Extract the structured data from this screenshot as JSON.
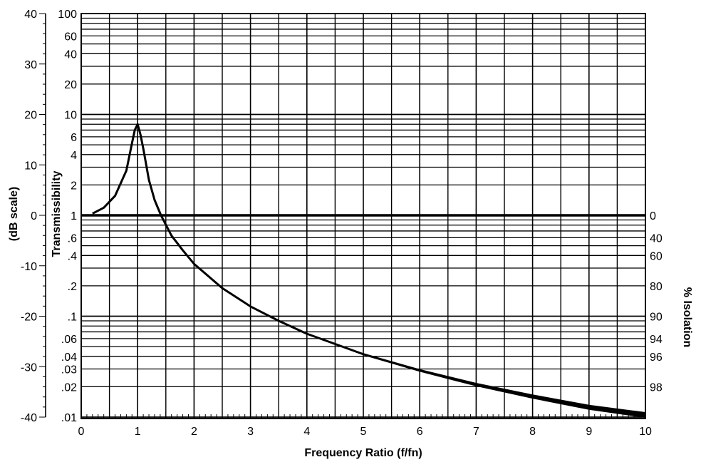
{
  "chart_data": {
    "type": "line",
    "title": "",
    "xlabel": "Frequency Ratio (f/fn)",
    "ylabel_primary": "Transmissibility",
    "ylabel_db": "(dB scale)",
    "ylabel_isolation": "% Isolation",
    "xlim": [
      0,
      10
    ],
    "ylim_transmissibility": [
      0.01,
      100
    ],
    "ylim_db": [
      -40,
      40
    ],
    "y_scale": "log",
    "grid": true,
    "x_ticks": [
      "0",
      "1",
      "2",
      "3",
      "4",
      "5",
      "6",
      "7",
      "8",
      "9",
      "10"
    ],
    "db_ticks": [
      "40",
      "30",
      "20",
      "10",
      "0",
      "-10",
      "-20",
      "-30",
      "-40"
    ],
    "transmissibility_ticks": [
      "100",
      "60",
      "40",
      "20",
      "10",
      "6",
      "4",
      "2",
      "1",
      ".6",
      ".4",
      ".2",
      ".1",
      ".06",
      ".04",
      ".03",
      ".02",
      ".01"
    ],
    "isolation_ticks": [
      "0",
      "40",
      "60",
      "80",
      "90",
      "94",
      "96",
      "98"
    ],
    "series": [
      {
        "x": [
          0.2,
          0.4,
          0.6,
          0.8,
          0.9,
          0.95,
          1.0,
          1.05,
          1.1,
          1.2,
          1.3,
          1.414,
          1.6,
          1.8,
          2.0,
          2.5,
          3.0,
          3.5,
          4.0,
          5.0,
          6.0,
          7.0,
          8.0,
          9.0,
          10.0
        ],
        "y": [
          1.04,
          1.19,
          1.56,
          2.78,
          5.2,
          7.0,
          8.0,
          6.3,
          4.6,
          2.25,
          1.42,
          1.0,
          0.63,
          0.45,
          0.33,
          0.19,
          0.125,
          0.09,
          0.067,
          0.042,
          0.029,
          0.021,
          0.016,
          0.0125,
          0.0105
        ]
      }
    ]
  }
}
